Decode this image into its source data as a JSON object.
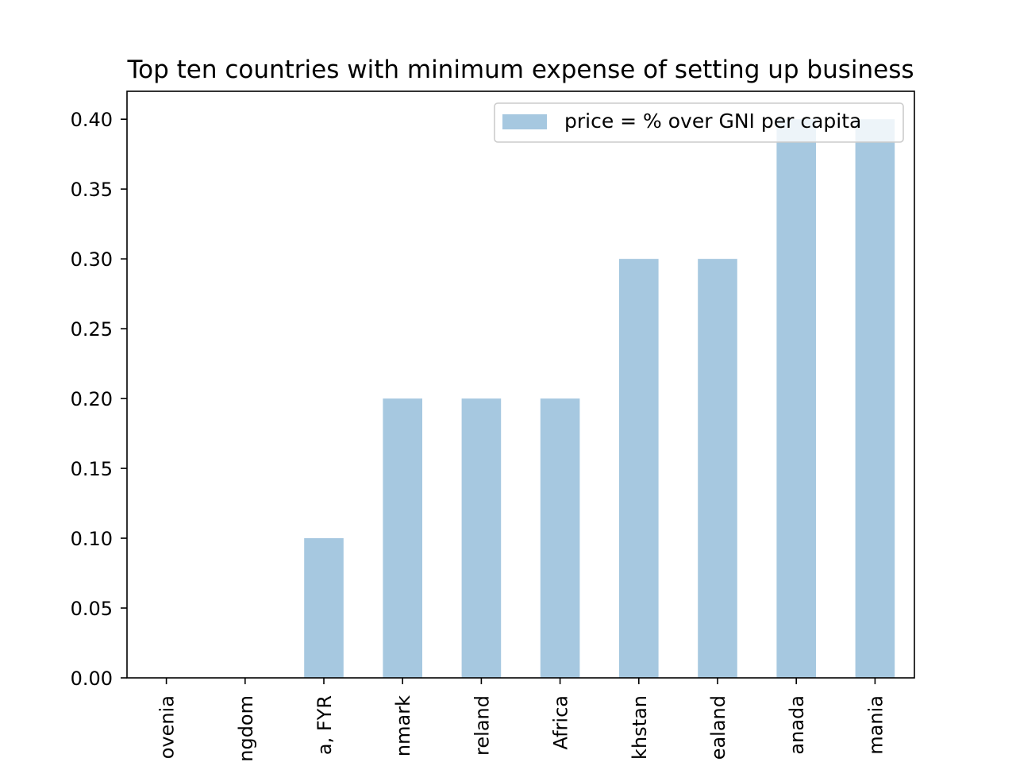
{
  "chart_data": {
    "type": "bar",
    "title": "Top ten countries with minimum expense of setting up business",
    "xlabel": "",
    "ylabel": "",
    "categories": [
      "ovenia",
      "ngdom",
      "a, FYR",
      "nmark",
      "reland",
      "Africa",
      "khstan",
      "ealand",
      "anada",
      "mania"
    ],
    "series": [
      {
        "name": "price = % over GNI per capita",
        "values": [
          0.0,
          0.0,
          0.1,
          0.2,
          0.2,
          0.2,
          0.3,
          0.3,
          0.4,
          0.4
        ],
        "color": "#a6c8e0"
      }
    ],
    "ylim": [
      0,
      0.42
    ],
    "yticks": [
      "0.00",
      "0.05",
      "0.10",
      "0.15",
      "0.20",
      "0.25",
      "0.30",
      "0.35",
      "0.40"
    ],
    "grid": false,
    "legend_position": "top-right"
  }
}
